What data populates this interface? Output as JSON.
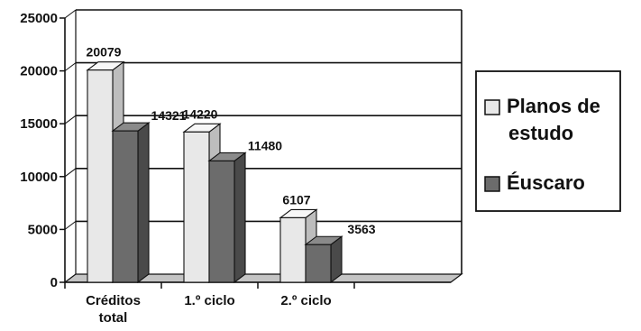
{
  "chart_data": {
    "type": "bar",
    "three_d": true,
    "categories": [
      [
        "Créditos",
        "total"
      ],
      [
        "1.º ciclo"
      ],
      [
        "2.º ciclo"
      ]
    ],
    "series": [
      {
        "name": "Planos de estudo",
        "legend_lines": [
          "Planos de",
          "estudo"
        ],
        "color": "#e8e8e8",
        "values": [
          20079,
          14220,
          6107
        ]
      },
      {
        "name": "Éuscaro",
        "legend_lines": [
          "Éuscaro"
        ],
        "color": "#6c6c6c",
        "values": [
          14321,
          11480,
          3563
        ]
      }
    ],
    "data_labels": [
      [
        "20079",
        "14220",
        "6107"
      ],
      [
        "14321",
        "11480",
        "3563"
      ]
    ],
    "y_ticks": [
      "0",
      "5000",
      "10000",
      "15000",
      "20000",
      "25000"
    ],
    "ylim": [
      0,
      25000
    ],
    "grid": true,
    "legend_position": "right"
  }
}
